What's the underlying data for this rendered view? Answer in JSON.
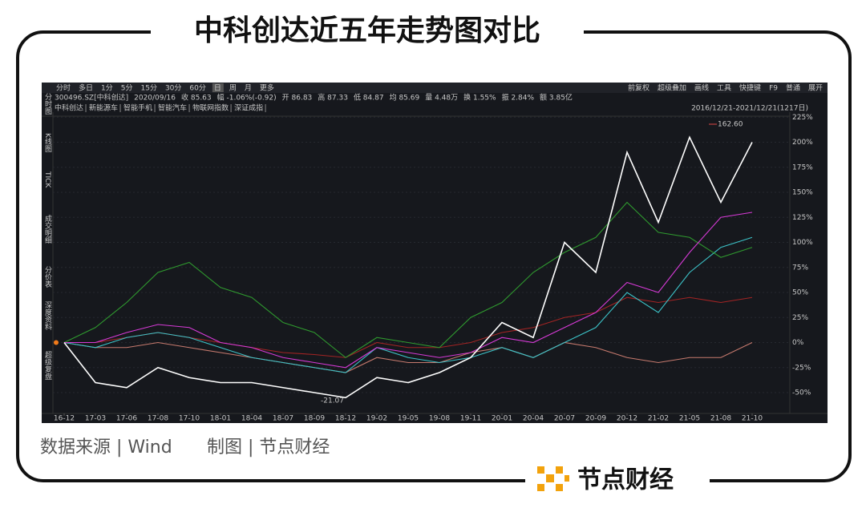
{
  "page": {
    "title": "中科创达近五年走势图对比",
    "source": "数据来源 | Wind",
    "credit": "制图 | 节点财经",
    "logo": "节点财经"
  },
  "terminal": {
    "toolbar_left": [
      "分时",
      "多日",
      "1分",
      "5分",
      "15分",
      "30分",
      "60分",
      "日",
      "周",
      "月",
      "更多"
    ],
    "toolbar_right": [
      "前复权",
      "超级叠加",
      "画线",
      "工具",
      "快捷键",
      "F9",
      "普通",
      "展开"
    ],
    "sidebar": [
      "分时图",
      "K线图",
      "TICK",
      "成交明细",
      "分价表",
      "深度资料",
      "超级复盘"
    ],
    "quote": [
      "300496.SZ[中科创达]",
      "2020/09/16",
      "收 85.63",
      "幅 -1.06%(-0.92)",
      "开 86.83",
      "高 87.33",
      "低 84.87",
      "均 85.69",
      "量 4.48万",
      "换 1.55%",
      "振 2.84%",
      "额 3.85亿"
    ],
    "range": "2016/12/21-2021/12/21(1217日)"
  },
  "chart_data": {
    "type": "line",
    "categories": [
      "16-12",
      "17-03",
      "17-06",
      "17-08",
      "17-10",
      "18-01",
      "18-04",
      "18-07",
      "18-09",
      "18-12",
      "19-02",
      "19-05",
      "19-08",
      "19-11",
      "20-01",
      "20-04",
      "20-07",
      "20-09",
      "20-12",
      "21-02",
      "21-05",
      "21-08",
      "21-10"
    ],
    "series": [
      {
        "name": "中科创达",
        "color": "#ffffff",
        "values": [
          0,
          -40,
          -45,
          -25,
          -35,
          -40,
          -40,
          -45,
          -50,
          -55,
          -35,
          -40,
          -30,
          -15,
          20,
          5,
          100,
          70,
          190,
          120,
          205,
          140,
          200
        ]
      },
      {
        "name": "新能源车",
        "color": "#d63ad6",
        "values": [
          0,
          0,
          10,
          18,
          15,
          0,
          -5,
          -15,
          -20,
          -25,
          -5,
          -10,
          -15,
          -10,
          5,
          0,
          15,
          30,
          60,
          50,
          90,
          125,
          130
        ]
      },
      {
        "name": "智能手机",
        "color": "#2f9a2f",
        "values": [
          0,
          15,
          40,
          70,
          80,
          55,
          45,
          20,
          10,
          -15,
          5,
          0,
          -5,
          25,
          40,
          70,
          90,
          105,
          140,
          110,
          105,
          85,
          95
        ]
      },
      {
        "name": "智能汽车",
        "color": "#3cc3c8",
        "values": [
          0,
          -5,
          5,
          10,
          5,
          -5,
          -15,
          -20,
          -25,
          -30,
          -5,
          -15,
          -20,
          -15,
          -5,
          -15,
          0,
          15,
          50,
          30,
          70,
          95,
          105
        ]
      },
      {
        "name": "物联网指数",
        "color": "#a32424",
        "values": [
          0,
          0,
          5,
          10,
          5,
          0,
          -5,
          -10,
          -12,
          -15,
          0,
          -5,
          -5,
          0,
          10,
          15,
          25,
          30,
          45,
          40,
          45,
          40,
          45
        ]
      },
      {
        "name": "深证成指",
        "color": "#c77a6e",
        "values": [
          0,
          -5,
          -5,
          0,
          -5,
          -10,
          -15,
          -20,
          -25,
          -30,
          -15,
          -20,
          -20,
          -10,
          -5,
          -15,
          0,
          -5,
          -15,
          -20,
          -15,
          -15,
          0
        ]
      }
    ],
    "annotations": [
      "162.60",
      "-21.07"
    ],
    "ylim": [
      -70,
      230
    ],
    "yticks": [
      {
        "value": 225,
        "label": "225%"
      },
      {
        "value": 200,
        "label": "200%"
      },
      {
        "value": 175,
        "label": "175%"
      },
      {
        "value": 150,
        "label": "150%"
      },
      {
        "value": 125,
        "label": "125%"
      },
      {
        "value": 100,
        "label": "100%"
      },
      {
        "value": 75,
        "label": "75%"
      },
      {
        "value": 50,
        "label": "50%"
      },
      {
        "value": 25,
        "label": "25%"
      },
      {
        "value": 0,
        "label": "0%"
      },
      {
        "value": -25,
        "label": "-25%"
      },
      {
        "value": -50,
        "label": "-50%"
      }
    ],
    "grid": true
  }
}
